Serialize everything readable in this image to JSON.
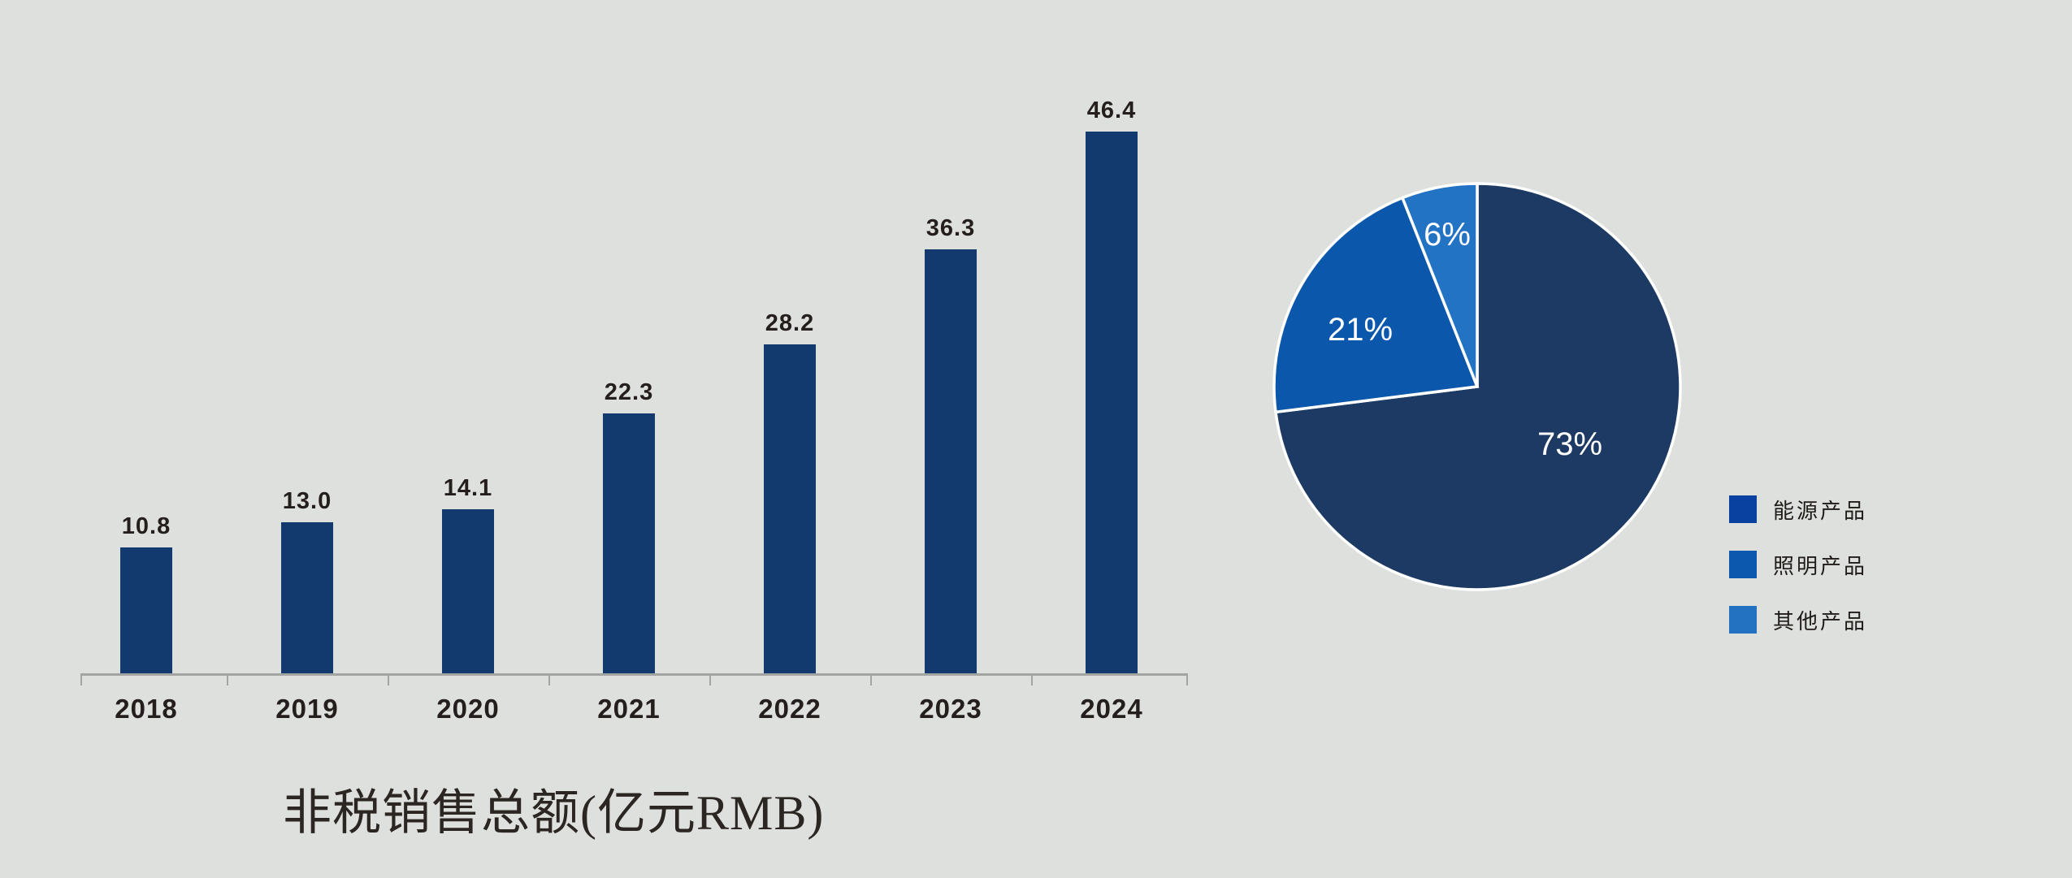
{
  "background_color": "#DEE0DD",
  "chart_data": [
    {
      "type": "bar",
      "title": "非税销售总额(亿元RMB)",
      "categories": [
        "2018",
        "2019",
        "2020",
        "2021",
        "2022",
        "2023",
        "2024"
      ],
      "values": [
        10.8,
        13.0,
        14.1,
        22.3,
        28.2,
        36.3,
        46.4
      ],
      "value_labels": [
        "10.8",
        "13.0",
        "14.1",
        "22.3",
        "28.2",
        "36.3",
        "46.4"
      ],
      "ylim": [
        0,
        50
      ],
      "grid": false,
      "xlabel": "",
      "ylabel": "",
      "bar_color": "#123A6F",
      "axis_color": "#A3A5A3",
      "label_color": "#241F1C"
    },
    {
      "type": "pie",
      "labels": [
        "能源产品",
        "照明产品",
        "其他产品"
      ],
      "values": [
        73,
        21,
        6
      ],
      "display_labels": [
        "73%",
        "21%",
        "6%"
      ],
      "slice_colors": [
        "#1C3A63",
        "#0B57AC",
        "#2273C4"
      ],
      "slice_label_color": "#FFFFFF",
      "slice_border_color": "#FFFFFF",
      "legend_position": "right",
      "legend": [
        {
          "label": "能源产品",
          "color": "#0941A0"
        },
        {
          "label": "照明产品",
          "color": "#0C58AE"
        },
        {
          "label": "其他产品",
          "color": "#2272C1"
        }
      ]
    }
  ]
}
